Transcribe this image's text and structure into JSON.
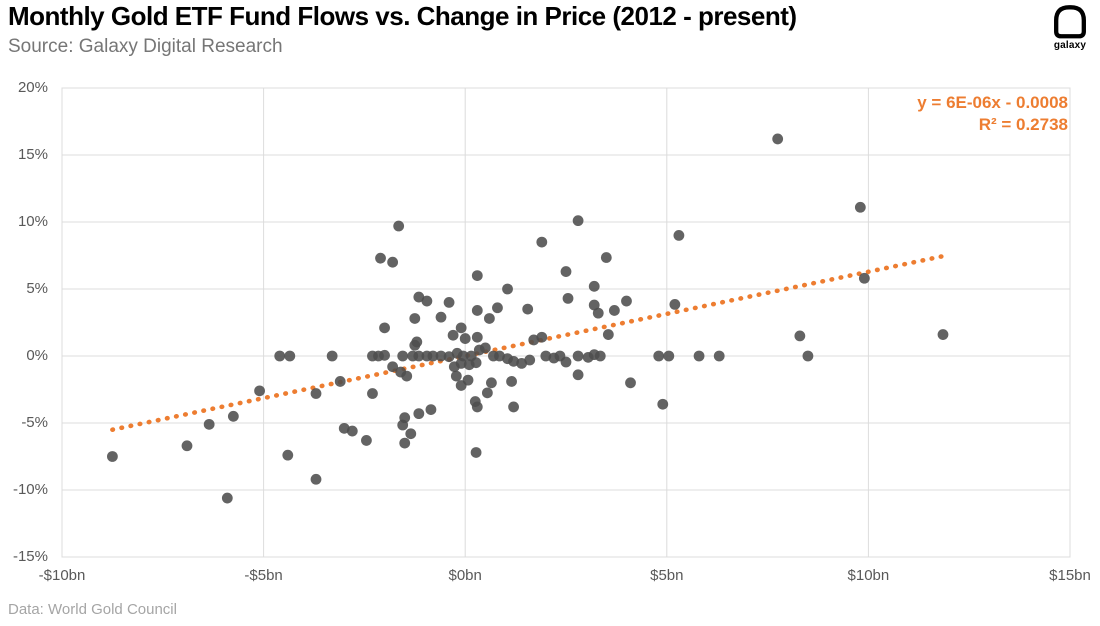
{
  "header": {
    "title": "Monthly Gold ETF Fund Flows vs. Change in Price (2012 - present)",
    "source": "Source: Galaxy Digital Research",
    "logo_label": "galaxy"
  },
  "footer": {
    "credit": "Data: World Gold Council"
  },
  "annotation": {
    "equation": "y = 6E-06x - 0.0008",
    "r_squared": "R² = 0.2738"
  },
  "colors": {
    "accent_orange": "#ED7D31",
    "point_gray": "#4D4D4D",
    "grid_gray": "#DCDCDC",
    "axis_text_gray": "#595959"
  },
  "chart_data": {
    "type": "scatter",
    "title": "Monthly Gold ETF Fund Flows vs. Change in Price (2012 - present)",
    "xlabel": "",
    "ylabel": "",
    "x_unit": "monthly gold ETF fund flows, $bn",
    "y_unit": "monthly change in gold price, %",
    "xlim": [
      -10,
      15
    ],
    "ylim": [
      -15,
      20
    ],
    "grid": true,
    "legend": "none",
    "x_tick_values": [
      -10,
      -5,
      0,
      5,
      10,
      15
    ],
    "x_tick_labels": [
      "-$10bn",
      "-$5bn",
      "$0bn",
      "$5bn",
      "$10bn",
      "$15bn"
    ],
    "y_tick_values": [
      20,
      15,
      10,
      5,
      0,
      -5,
      -10,
      -15
    ],
    "y_tick_labels": [
      "20%",
      "15%",
      "10%",
      "5%",
      "0%",
      "-5%",
      "-10%",
      "-15%"
    ],
    "trendline": {
      "style": "dotted",
      "color": "#ED7D31",
      "x1": -8.75,
      "y1": -5.5,
      "x2": 11.85,
      "y2": 7.45,
      "equation": "y = 6E-06x - 0.0008",
      "r2": 0.2738
    },
    "points": [
      [
        -8.75,
        -7.5
      ],
      [
        -6.9,
        -6.7
      ],
      [
        -6.35,
        -5.1
      ],
      [
        -5.9,
        -10.6
      ],
      [
        -5.75,
        -4.5
      ],
      [
        -5.1,
        -2.6
      ],
      [
        -4.6,
        0
      ],
      [
        -4.35,
        0
      ],
      [
        -4.4,
        -7.4
      ],
      [
        -3.7,
        -9.2
      ],
      [
        -3.7,
        -2.8
      ],
      [
        -3.3,
        0
      ],
      [
        -3.1,
        -1.9
      ],
      [
        -3.0,
        -5.4
      ],
      [
        -2.8,
        -5.6
      ],
      [
        -2.45,
        -6.3
      ],
      [
        -2.3,
        -2.8
      ],
      [
        -2.3,
        0
      ],
      [
        -2.15,
        0
      ],
      [
        -2.0,
        0.05
      ],
      [
        -2.1,
        7.3
      ],
      [
        -1.8,
        7.0
      ],
      [
        -1.65,
        9.7
      ],
      [
        -2.0,
        2.1
      ],
      [
        -1.25,
        2.8
      ],
      [
        -1.15,
        4.4
      ],
      [
        -0.95,
        4.1
      ],
      [
        -0.6,
        2.9
      ],
      [
        -0.4,
        4.0
      ],
      [
        -1.2,
        1.05
      ],
      [
        -1.8,
        -0.8
      ],
      [
        -1.6,
        -1.2
      ],
      [
        -1.45,
        -1.5
      ],
      [
        -1.55,
        -5.15
      ],
      [
        -1.5,
        -4.6
      ],
      [
        -1.5,
        -6.5
      ],
      [
        -1.35,
        -5.8
      ],
      [
        -1.15,
        -4.3
      ],
      [
        -0.85,
        -4.0
      ],
      [
        -1.55,
        0
      ],
      [
        -1.3,
        0
      ],
      [
        -1.15,
        0
      ],
      [
        -0.95,
        0
      ],
      [
        -0.8,
        0
      ],
      [
        -0.6,
        0
      ],
      [
        -0.4,
        -0.05
      ],
      [
        -0.2,
        0.2
      ],
      [
        -0.05,
        0
      ],
      [
        0.15,
        0
      ],
      [
        0.35,
        0.45
      ],
      [
        0.5,
        0.6
      ],
      [
        0.7,
        0
      ],
      [
        0.85,
        0
      ],
      [
        1.05,
        -0.2
      ],
      [
        1.2,
        -0.4
      ],
      [
        1.4,
        -0.55
      ],
      [
        1.6,
        -0.3
      ],
      [
        2.0,
        0
      ],
      [
        2.2,
        -0.15
      ],
      [
        2.35,
        0
      ],
      [
        2.5,
        -0.45
      ],
      [
        -1.25,
        0.8
      ],
      [
        1.7,
        1.2
      ],
      [
        1.9,
        1.4
      ],
      [
        -0.3,
        1.55
      ],
      [
        0.0,
        1.3
      ],
      [
        0.3,
        1.4
      ],
      [
        -0.27,
        -0.8
      ],
      [
        -0.1,
        -0.55
      ],
      [
        0.1,
        -0.65
      ],
      [
        0.27,
        -0.5
      ],
      [
        -0.22,
        -1.5
      ],
      [
        0.07,
        -1.8
      ],
      [
        -0.1,
        -2.2
      ],
      [
        0.65,
        -2.0
      ],
      [
        1.15,
        -1.9
      ],
      [
        0.25,
        -3.4
      ],
      [
        0.3,
        -3.8
      ],
      [
        0.55,
        -2.75
      ],
      [
        1.2,
        -3.8
      ],
      [
        0.27,
        -7.2
      ],
      [
        -0.1,
        2.1
      ],
      [
        0.3,
        3.4
      ],
      [
        0.6,
        2.8
      ],
      [
        0.8,
        3.6
      ],
      [
        1.05,
        5.0
      ],
      [
        1.55,
        3.5
      ],
      [
        0.3,
        6.0
      ],
      [
        1.9,
        8.5
      ],
      [
        2.5,
        6.3
      ],
      [
        2.55,
        4.3
      ],
      [
        2.8,
        10.1
      ],
      [
        3.2,
        5.2
      ],
      [
        3.2,
        3.8
      ],
      [
        3.3,
        3.2
      ],
      [
        3.5,
        7.35
      ],
      [
        3.7,
        3.4
      ],
      [
        4.0,
        4.1
      ],
      [
        3.55,
        1.6
      ],
      [
        2.8,
        0
      ],
      [
        3.05,
        -0.1
      ],
      [
        3.2,
        0.1
      ],
      [
        3.35,
        0
      ],
      [
        2.8,
        -1.4
      ],
      [
        4.1,
        -2.0
      ],
      [
        4.9,
        -3.6
      ],
      [
        4.8,
        0
      ],
      [
        5.05,
        0
      ],
      [
        5.2,
        3.85
      ],
      [
        5.8,
        0
      ],
      [
        6.3,
        0
      ],
      [
        8.3,
        1.5
      ],
      [
        8.5,
        0
      ],
      [
        5.3,
        9.0
      ],
      [
        7.75,
        16.2
      ],
      [
        9.8,
        11.1
      ],
      [
        9.9,
        5.8
      ],
      [
        11.85,
        1.6
      ]
    ],
    "point_style": {
      "color": "#4D4D4D",
      "radius": 5.4,
      "opacity": 0.88
    }
  }
}
